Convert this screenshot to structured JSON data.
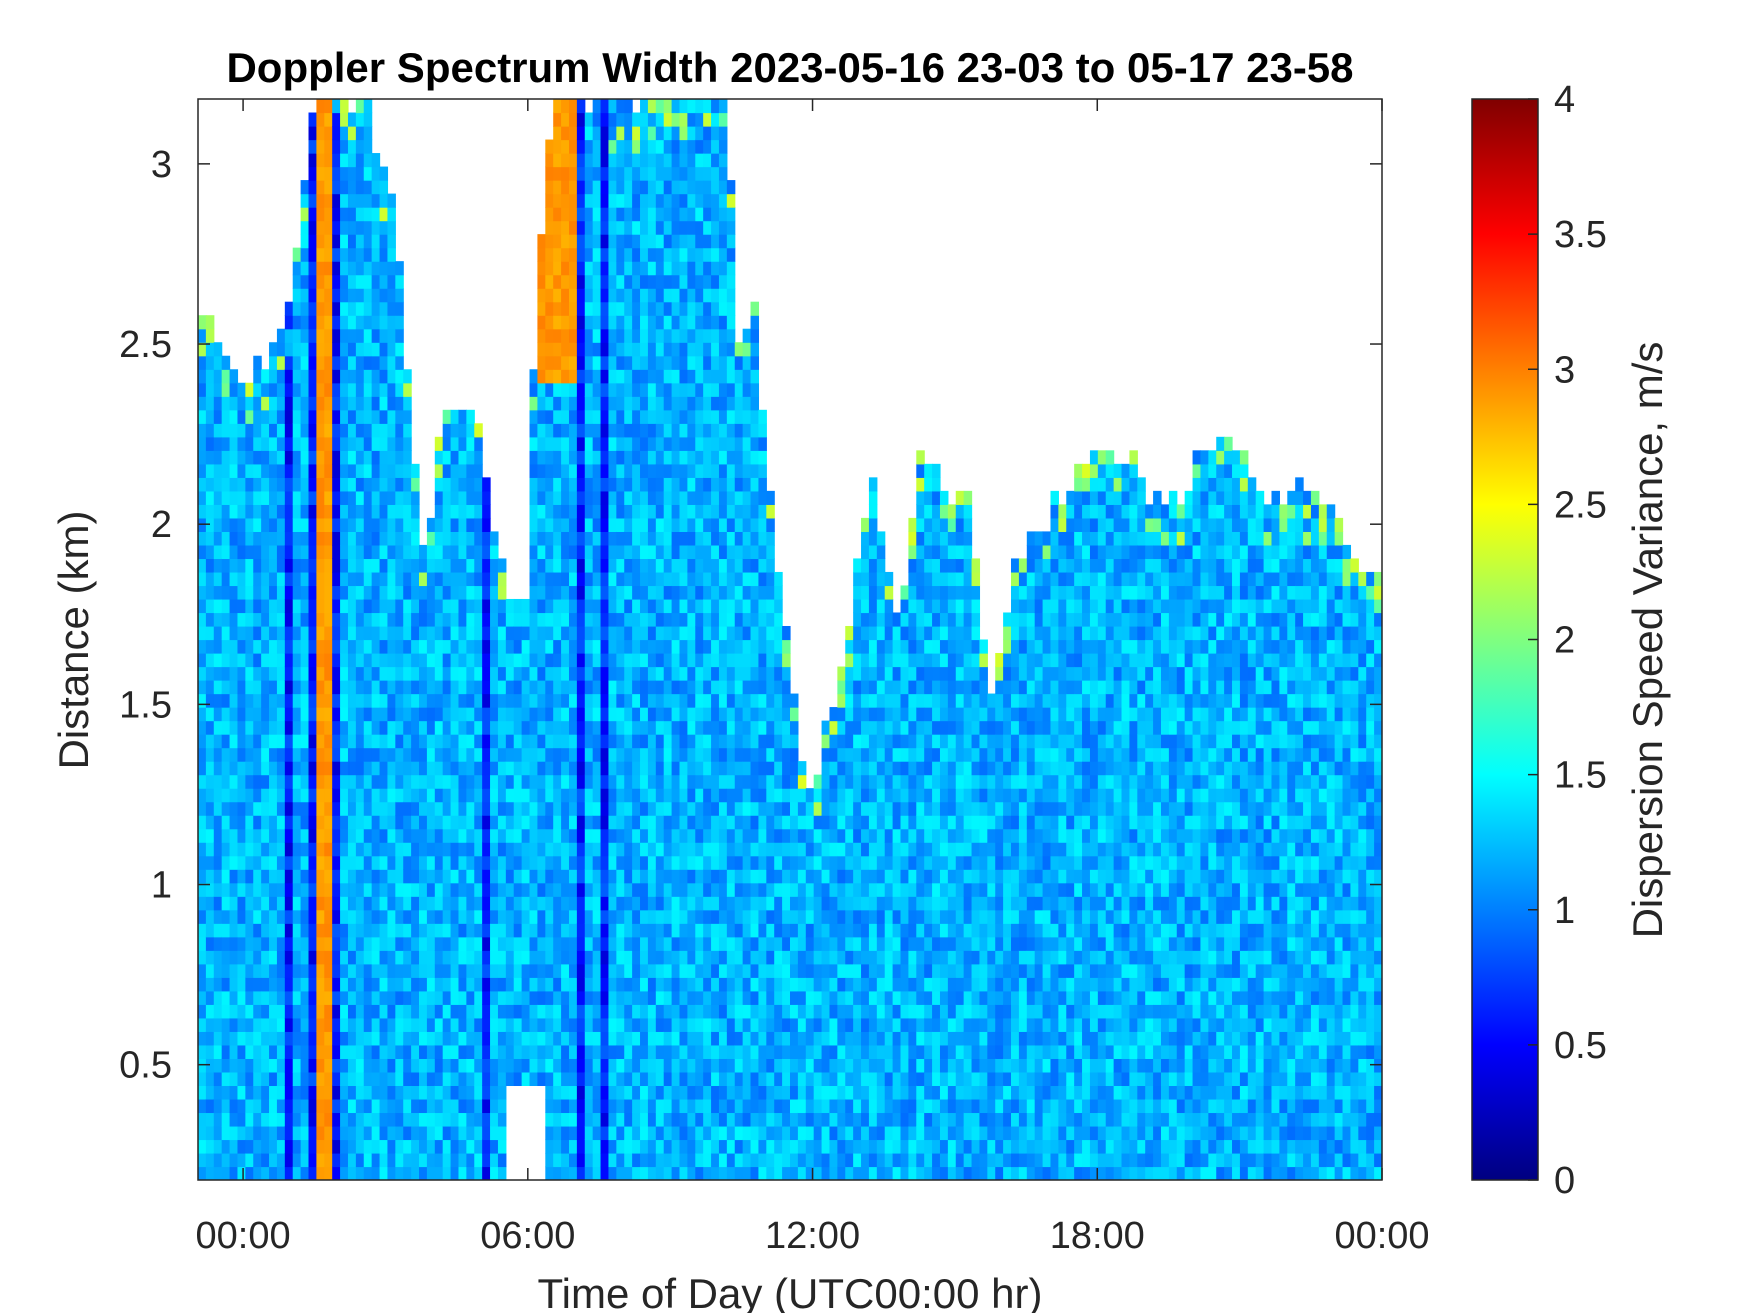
{
  "chart_data": {
    "type": "heatmap",
    "title": "Doppler Spectrum Width 2023-05-16 23-03 to 05-17 23-58",
    "xlabel": "Time of Day (UTC00:00 hr)",
    "ylabel": "Distance (km)",
    "x_tick_labels": [
      "00:00",
      "06:00",
      "12:00",
      "18:00",
      "00:00"
    ],
    "x_ticks_hours": [
      0,
      6,
      12,
      18,
      24
    ],
    "xlim_hours": [
      -0.95,
      24.0
    ],
    "y_ticks": [
      0.5,
      1,
      1.5,
      2,
      2.5,
      3
    ],
    "y_tick_labels": [
      "0.5",
      "1",
      "1.5",
      "2",
      "2.5",
      "3"
    ],
    "ylim": [
      0.18,
      3.18
    ],
    "colorbar": {
      "label": "Dispersion Speed Variance, m/s",
      "ticks": [
        0,
        0.5,
        1,
        1.5,
        2,
        2.5,
        3,
        3.5,
        4
      ],
      "tick_labels": [
        "0",
        "0.5",
        "1",
        "1.5",
        "2",
        "2.5",
        "3",
        "3.5",
        "4"
      ],
      "range": [
        0,
        4
      ],
      "colormap": "jet"
    },
    "typical_value_ms": 1.2,
    "data_top_km": [
      [
        -0.95,
        2.6
      ],
      [
        -0.5,
        2.5
      ],
      [
        0.0,
        2.4
      ],
      [
        0.5,
        2.45
      ],
      [
        1.0,
        2.6
      ],
      [
        1.5,
        3.18
      ],
      [
        2.5,
        3.18
      ],
      [
        3.2,
        2.9
      ],
      [
        3.8,
        1.9
      ],
      [
        4.3,
        2.4
      ],
      [
        4.9,
        2.3
      ],
      [
        5.3,
        1.95
      ],
      [
        5.8,
        1.8
      ],
      [
        6.5,
        3.18
      ],
      [
        10.2,
        3.18
      ],
      [
        10.7,
        2.8
      ],
      [
        10.5,
        2.35
      ],
      [
        11.0,
        2.2
      ],
      [
        11.5,
        1.65
      ],
      [
        11.9,
        1.25
      ],
      [
        12.3,
        1.45
      ],
      [
        12.7,
        1.7
      ],
      [
        13.2,
        2.15
      ],
      [
        13.8,
        1.75
      ],
      [
        14.3,
        2.2
      ],
      [
        14.8,
        2.1
      ],
      [
        15.3,
        2.05
      ],
      [
        15.8,
        1.5
      ],
      [
        16.2,
        1.85
      ],
      [
        16.8,
        2.0
      ],
      [
        17.4,
        2.1
      ],
      [
        18.0,
        2.2
      ],
      [
        18.8,
        2.15
      ],
      [
        19.5,
        2.05
      ],
      [
        20.2,
        2.2
      ],
      [
        20.8,
        2.25
      ],
      [
        21.5,
        2.1
      ],
      [
        22.3,
        2.1
      ],
      [
        23.0,
        2.0
      ],
      [
        23.6,
        1.9
      ],
      [
        24.0,
        1.85
      ]
    ],
    "clear_gaps_km": [
      {
        "x_hours": [
          0.0,
          0.9
        ],
        "y_km": [
          2.6,
          3.18
        ]
      },
      {
        "x_hours": [
          3.8,
          4.8
        ],
        "y_km": [
          2.3,
          3.18
        ]
      },
      {
        "x_hours": [
          5.6,
          6.0
        ],
        "y_km": [
          1.8,
          3.18
        ]
      },
      {
        "x_hours": [
          5.6,
          6.4
        ],
        "y_km": [
          0.18,
          0.45
        ]
      }
    ],
    "high_value_bands": [
      {
        "x_hours": [
          1.55,
          1.85
        ],
        "y_km": [
          0.18,
          3.18
        ],
        "value_ms": 2.9
      },
      {
        "x_hours": [
          6.2,
          7.0
        ],
        "y_km": [
          2.4,
          3.18
        ],
        "value_ms": 2.9
      }
    ],
    "low_value_streaks_hours": [
      1.0,
      1.45,
      1.95,
      5.15,
      6.05,
      7.1,
      7.6
    ]
  }
}
